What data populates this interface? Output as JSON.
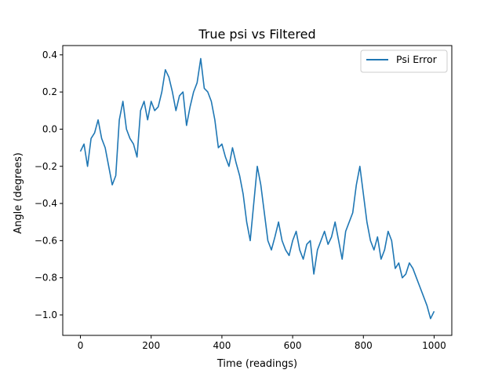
{
  "chart_data": {
    "type": "line",
    "title": "True psi vs Filtered",
    "xlabel": "Time (readings)",
    "ylabel": "Angle (degrees)",
    "xlim": [
      -50,
      1050
    ],
    "ylim": [
      -1.11,
      0.45
    ],
    "xticks": [
      0,
      200,
      400,
      600,
      800,
      1000
    ],
    "yticks": [
      0.4,
      0.2,
      0.0,
      -0.2,
      -0.4,
      -0.6,
      -0.8,
      -1.0
    ],
    "xtick_labels": [
      "0",
      "200",
      "400",
      "600",
      "800",
      "1000"
    ],
    "ytick_labels": [
      "0.4",
      "0.2",
      "0.0",
      "−0.2",
      "−0.4",
      "−0.6",
      "−0.8",
      "−1.0"
    ],
    "grid": false,
    "legend_position": "top-right",
    "series": [
      {
        "name": "Psi Error",
        "color": "#1f77b4",
        "x": [
          0,
          10,
          20,
          30,
          40,
          50,
          60,
          70,
          80,
          90,
          100,
          110,
          120,
          130,
          140,
          150,
          160,
          170,
          180,
          190,
          200,
          210,
          220,
          230,
          240,
          250,
          260,
          270,
          280,
          290,
          300,
          310,
          320,
          330,
          340,
          350,
          360,
          370,
          380,
          390,
          400,
          410,
          420,
          430,
          440,
          450,
          460,
          470,
          480,
          490,
          500,
          510,
          520,
          530,
          540,
          550,
          560,
          570,
          580,
          590,
          600,
          610,
          620,
          630,
          640,
          650,
          660,
          670,
          680,
          690,
          700,
          710,
          720,
          730,
          740,
          750,
          760,
          770,
          780,
          790,
          800,
          810,
          820,
          830,
          840,
          850,
          860,
          870,
          880,
          890,
          900,
          910,
          920,
          930,
          940,
          950,
          960,
          970,
          980,
          990,
          1000
        ],
        "y": [
          -0.12,
          -0.08,
          -0.2,
          -0.05,
          -0.02,
          0.05,
          -0.05,
          -0.1,
          -0.2,
          -0.3,
          -0.25,
          0.05,
          0.15,
          0.0,
          -0.05,
          -0.08,
          -0.15,
          0.1,
          0.15,
          0.05,
          0.15,
          0.1,
          0.12,
          0.2,
          0.32,
          0.28,
          0.2,
          0.1,
          0.18,
          0.2,
          0.02,
          0.12,
          0.2,
          0.25,
          0.38,
          0.22,
          0.2,
          0.15,
          0.05,
          -0.1,
          -0.08,
          -0.15,
          -0.2,
          -0.1,
          -0.18,
          -0.25,
          -0.35,
          -0.5,
          -0.6,
          -0.4,
          -0.2,
          -0.3,
          -0.45,
          -0.6,
          -0.65,
          -0.58,
          -0.5,
          -0.6,
          -0.65,
          -0.68,
          -0.6,
          -0.55,
          -0.65,
          -0.7,
          -0.62,
          -0.6,
          -0.78,
          -0.65,
          -0.6,
          -0.55,
          -0.62,
          -0.58,
          -0.5,
          -0.6,
          -0.7,
          -0.55,
          -0.5,
          -0.45,
          -0.3,
          -0.2,
          -0.35,
          -0.5,
          -0.6,
          -0.65,
          -0.58,
          -0.7,
          -0.65,
          -0.55,
          -0.6,
          -0.75,
          -0.72,
          -0.8,
          -0.78,
          -0.72,
          -0.75,
          -0.8,
          -0.85,
          -0.9,
          -0.95,
          -1.02,
          -0.98
        ]
      }
    ]
  }
}
